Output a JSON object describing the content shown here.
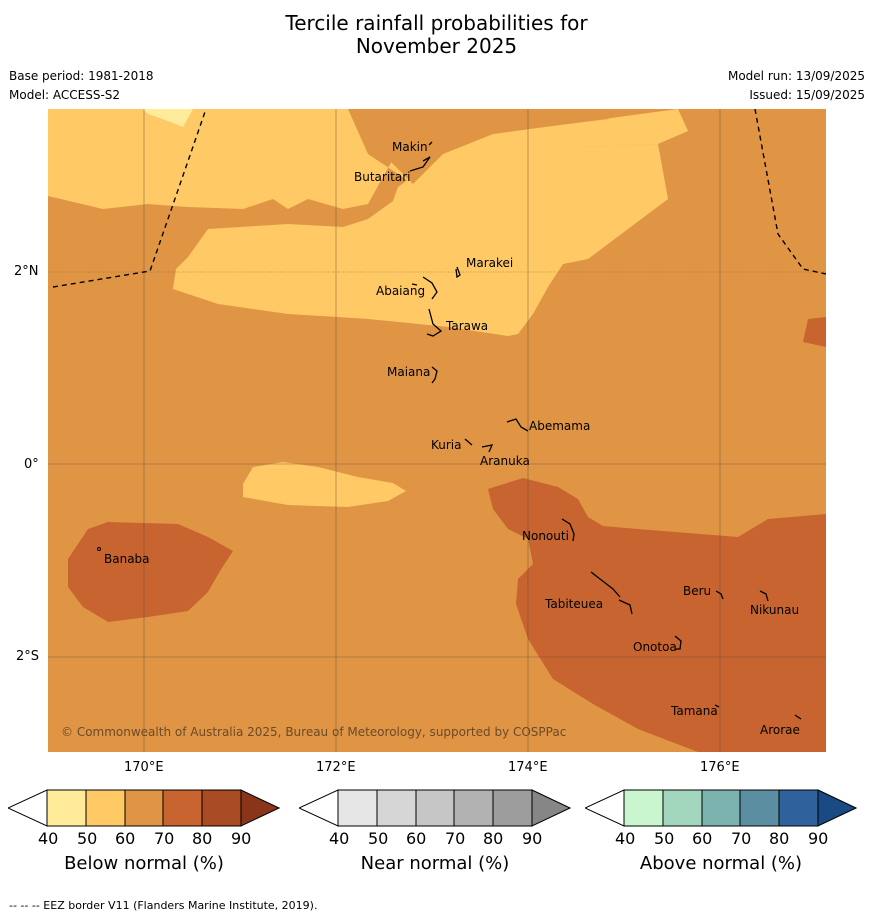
{
  "title_line1": "Tercile rainfall probabilities for",
  "title_line2": "November 2025",
  "base_period": "Base period: 1981-2018",
  "model": "Model: ACCESS-S2",
  "model_run": "Model run: 13/09/2025",
  "issued": "Issued: 15/09/2025",
  "copyright": "© Commonwealth of Australia 2025, Bureau of Meteorology, supported by COSPPac",
  "lat_labels": [
    "2°N",
    "0°",
    "2°S"
  ],
  "lon_labels": [
    "170°E",
    "172°E",
    "174°E",
    "176°E"
  ],
  "places": [
    {
      "name": "Makin"
    },
    {
      "name": "Butaritari"
    },
    {
      "name": "Marakei"
    },
    {
      "name": "Abaiang"
    },
    {
      "name": "Tarawa"
    },
    {
      "name": "Maiana"
    },
    {
      "name": "Abemama"
    },
    {
      "name": "Kuria"
    },
    {
      "name": "Aranuka"
    },
    {
      "name": "Nonouti"
    },
    {
      "name": "Banaba"
    },
    {
      "name": "Beru"
    },
    {
      "name": "Tabiteuea"
    },
    {
      "name": "Nikunau"
    },
    {
      "name": "Onotoa"
    },
    {
      "name": "Tamana"
    },
    {
      "name": "Arorae"
    }
  ],
  "colorbars": [
    {
      "title": "Below normal (%)",
      "ticks": [
        "40",
        "50",
        "60",
        "70",
        "80",
        "90"
      ],
      "colors": [
        "#ffffff",
        "#ffeb99",
        "#ffc966",
        "#e09545",
        "#c8642f",
        "#a94b25",
        "#8a3519"
      ]
    },
    {
      "title": "Near normal (%)",
      "ticks": [
        "40",
        "50",
        "60",
        "70",
        "80",
        "90"
      ],
      "colors": [
        "#ffffff",
        "#e6e6e6",
        "#d6d6d6",
        "#c6c6c6",
        "#b2b2b2",
        "#9d9d9d",
        "#868686"
      ]
    },
    {
      "title": "Above normal (%)",
      "ticks": [
        "40",
        "50",
        "60",
        "70",
        "80",
        "90"
      ],
      "colors": [
        "#ffffff",
        "#c9f5cf",
        "#a3d7bd",
        "#7db3ae",
        "#5b8ea0",
        "#2f629a",
        "#1a4a83"
      ]
    }
  ],
  "map_colors": {
    "c50": "#ffeb99",
    "c60": "#ffc966",
    "c70": "#e09545",
    "c80": "#c8642f"
  },
  "footnote": "-- -- -- EEZ border V11 (Flanders Marine Institute, 2019)."
}
